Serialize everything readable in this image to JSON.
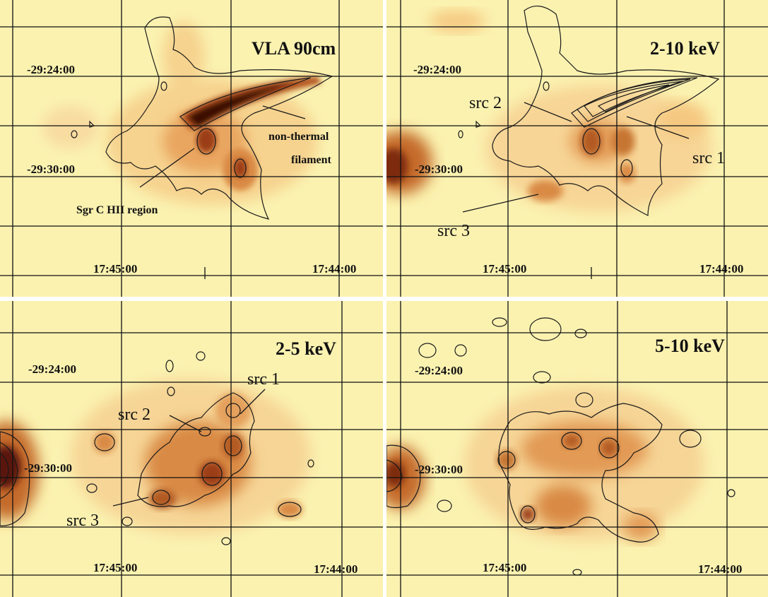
{
  "panels": [
    {
      "id": "vla",
      "band": "VLA 90cm",
      "ra_ticks": [
        "17:45:00",
        "17:44:00"
      ],
      "dec_ticks": [
        "-29:24:00",
        "-29:30:00"
      ],
      "annotations": [
        "non-thermal",
        "filament",
        "Sgr C HII region"
      ]
    },
    {
      "id": "hard",
      "band": "2-10 keV",
      "ra_ticks": [
        "17:45:00",
        "17:44:00"
      ],
      "dec_ticks": [
        "-29:24:00",
        "-29:30:00"
      ],
      "annotations": [
        "src 2",
        "src 1",
        "src 3"
      ]
    },
    {
      "id": "soft",
      "band": "2-5 keV",
      "ra_ticks": [
        "17:45:00",
        "17:44:00"
      ],
      "dec_ticks": [
        "-29:24:00",
        "-29:30:00"
      ],
      "annotations": [
        "src 1",
        "src 2",
        "src 3"
      ]
    },
    {
      "id": "vhard",
      "band": "5-10 keV",
      "ra_ticks": [
        "17:45:00",
        "17:44:00"
      ],
      "dec_ticks": [
        "-29:24:00",
        "-29:30:00"
      ],
      "annotations": []
    }
  ],
  "colors": {
    "background": "#fbf2b0",
    "light": "#f5c880",
    "medium": "#d98a44",
    "dark": "#9b3e14",
    "darkest": "#3a0b04",
    "contour": "#1a1a1a",
    "grid": "#111111",
    "separator": "#ffffff"
  }
}
